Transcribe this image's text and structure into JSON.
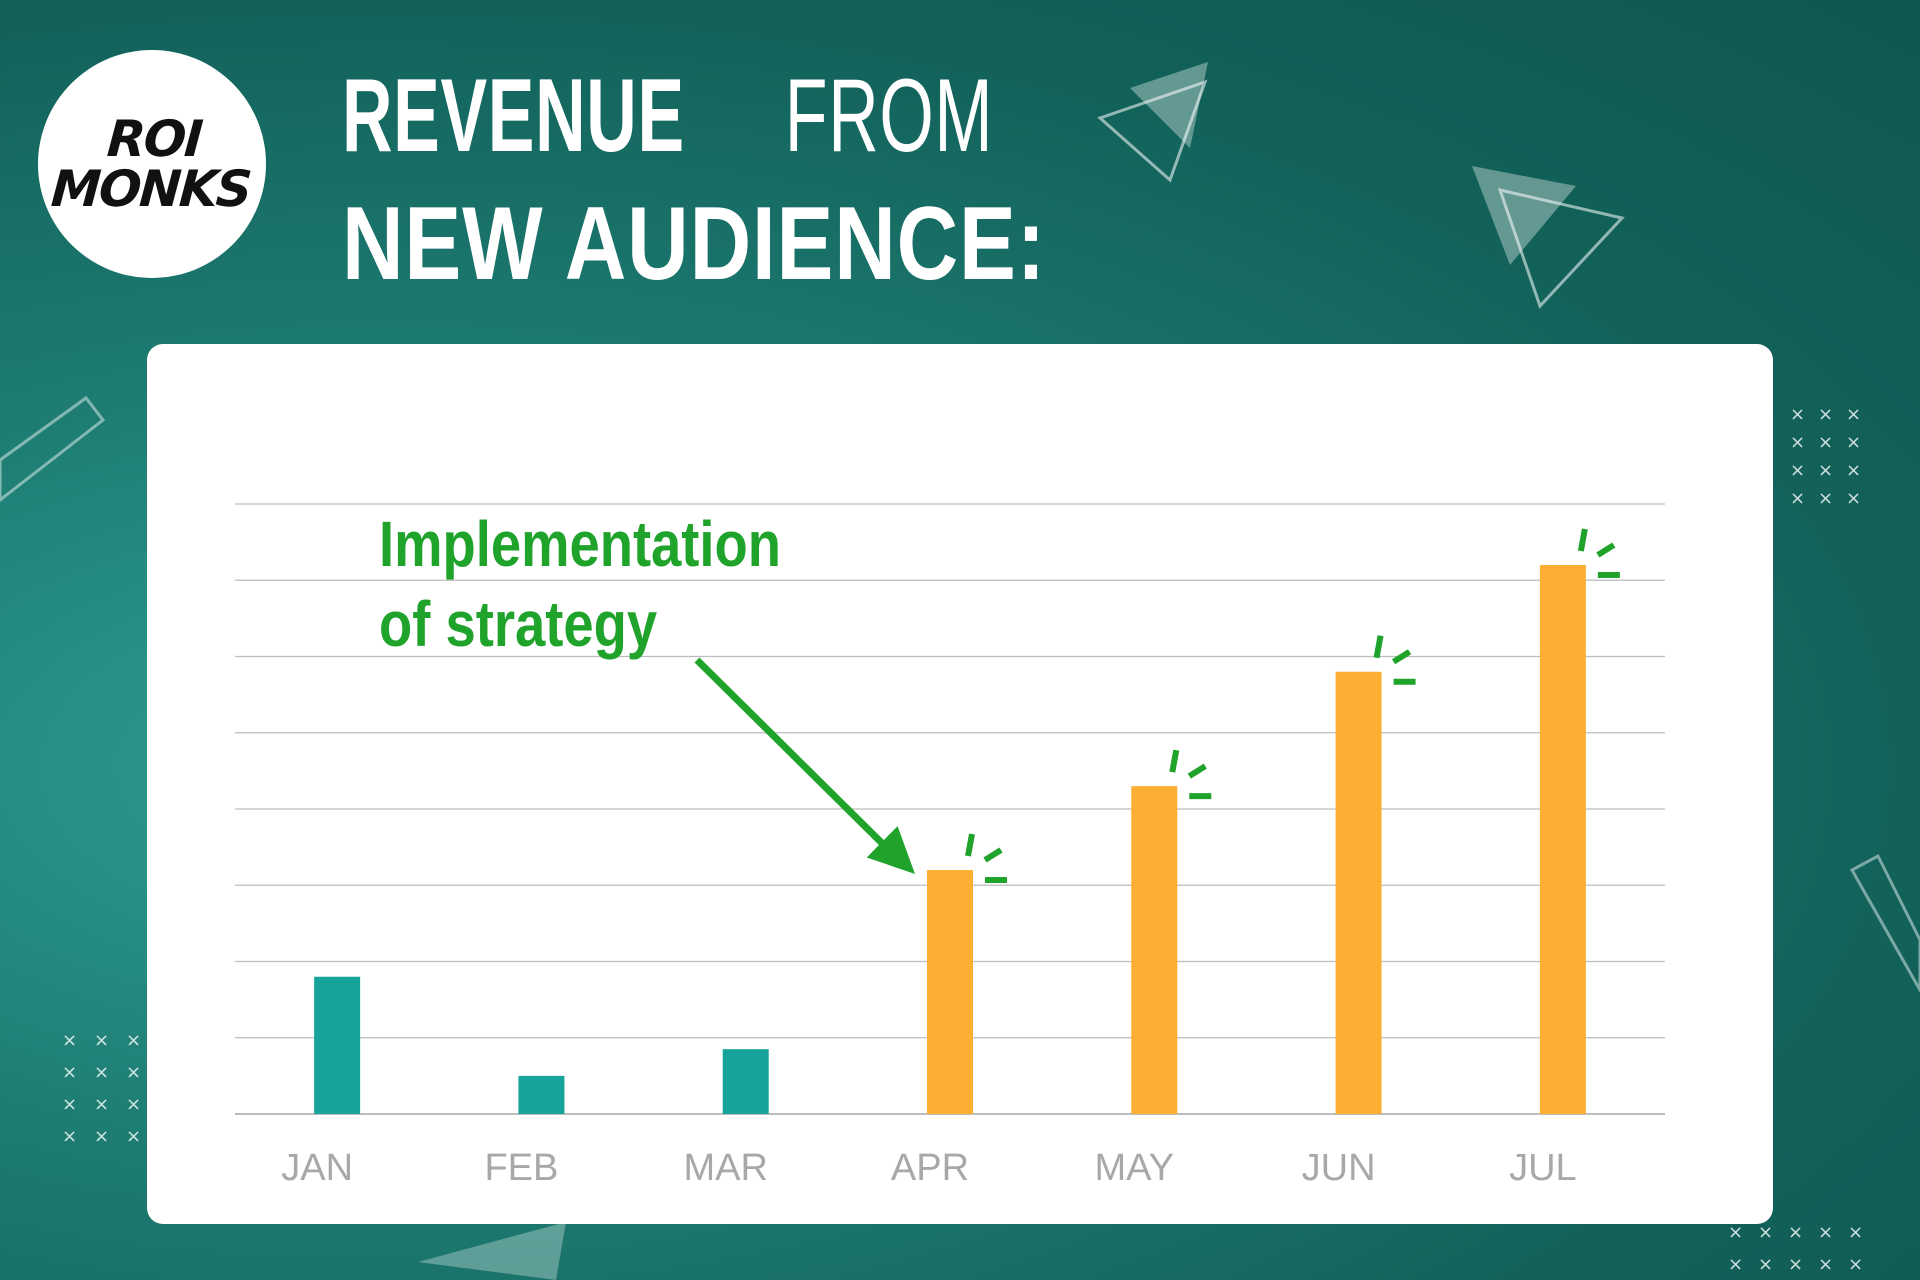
{
  "header": {
    "title_bold": "REVENUE",
    "title_light": "FROM",
    "title_line2": "NEW AUDIENCE:"
  },
  "logo": {
    "line1": "ROI",
    "line2": "MONKS"
  },
  "annotation": {
    "line1": "Implementation",
    "line2": "of strategy",
    "target_category": "APR"
  },
  "colors": {
    "background": "#1e7d73",
    "before_bar": "#16a39a",
    "after_bar": "#fcaf33",
    "annotation": "#1fa32a",
    "gridline": "#bdbdbd",
    "tick_label": "#a8a8a8"
  },
  "chart_data": {
    "type": "bar",
    "title": "REVENUE FROM NEW AUDIENCE:",
    "xlabel": "",
    "ylabel": "",
    "categories": [
      "JAN",
      "FEB",
      "MAR",
      "APR",
      "MAY",
      "JUN",
      "JUL"
    ],
    "values": [
      1.8,
      0.5,
      0.85,
      3.2,
      4.3,
      5.8,
      7.2
    ],
    "highlighted": [
      false,
      false,
      false,
      true,
      true,
      true,
      true
    ],
    "ylim": [
      0,
      8
    ],
    "yticks_labeled": false,
    "grid": true,
    "legend": "none"
  }
}
